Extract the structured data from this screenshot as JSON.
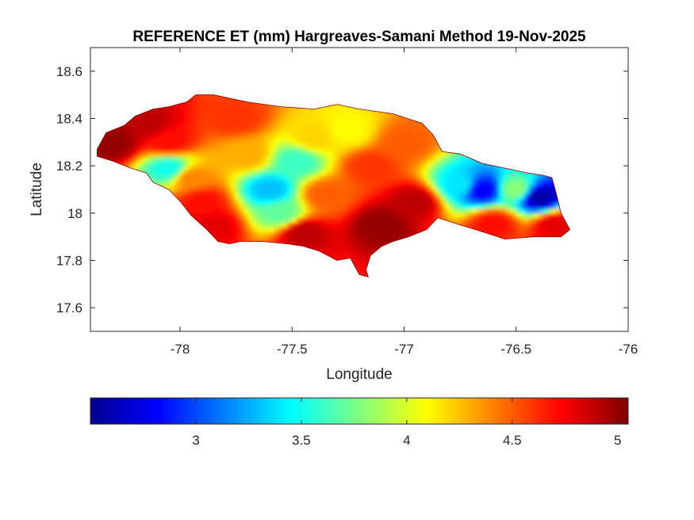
{
  "chart_data": {
    "type": "heatmap",
    "title": "REFERENCE ET (mm) Hargreaves-Samani Method  19-Nov-2025",
    "xlabel": "Longitude",
    "ylabel": "Latitude",
    "xlim": [
      -78.4,
      -76
    ],
    "ylim": [
      17.5,
      18.7
    ],
    "x_ticks": [
      -78,
      -77.5,
      -77,
      -76.5,
      -76
    ],
    "x_tick_labels": [
      "-78",
      "-77.5",
      "-77",
      "-76.5",
      "-76"
    ],
    "y_ticks": [
      17.6,
      17.8,
      18,
      18.2,
      18.4,
      18.6
    ],
    "y_tick_labels": [
      "17.6",
      "17.8",
      "18",
      "18.2",
      "18.4",
      "18.6"
    ],
    "grid": false,
    "colormap": "jet",
    "colorbar": {
      "location": "bottom",
      "range": [
        2.5,
        5.05
      ],
      "ticks": [
        3,
        3.5,
        4,
        4.5,
        5
      ],
      "tick_labels": [
        "3",
        "3.5",
        "4",
        "4.5",
        "5"
      ]
    },
    "region_outline": [
      [
        -78.37,
        18.27
      ],
      [
        -78.33,
        18.34
      ],
      [
        -78.25,
        18.37
      ],
      [
        -78.2,
        18.41
      ],
      [
        -78.12,
        18.44
      ],
      [
        -78.05,
        18.45
      ],
      [
        -77.97,
        18.47
      ],
      [
        -77.93,
        18.5
      ],
      [
        -77.85,
        18.5
      ],
      [
        -77.7,
        18.47
      ],
      [
        -77.55,
        18.45
      ],
      [
        -77.4,
        18.44
      ],
      [
        -77.3,
        18.46
      ],
      [
        -77.2,
        18.44
      ],
      [
        -77.05,
        18.42
      ],
      [
        -76.92,
        18.38
      ],
      [
        -76.87,
        18.33
      ],
      [
        -76.83,
        18.26
      ],
      [
        -76.75,
        18.25
      ],
      [
        -76.65,
        18.21
      ],
      [
        -76.55,
        18.19
      ],
      [
        -76.45,
        18.17
      ],
      [
        -76.38,
        18.16
      ],
      [
        -76.34,
        18.15
      ],
      [
        -76.32,
        18.08
      ],
      [
        -76.3,
        18.0
      ],
      [
        -76.26,
        17.93
      ],
      [
        -76.3,
        17.9
      ],
      [
        -76.42,
        17.9
      ],
      [
        -76.55,
        17.89
      ],
      [
        -76.68,
        17.93
      ],
      [
        -76.75,
        17.95
      ],
      [
        -76.85,
        17.98
      ],
      [
        -76.9,
        17.93
      ],
      [
        -76.98,
        17.9
      ],
      [
        -77.05,
        17.88
      ],
      [
        -77.1,
        17.86
      ],
      [
        -77.15,
        17.82
      ],
      [
        -77.17,
        17.76
      ],
      [
        -77.16,
        17.73
      ],
      [
        -77.2,
        17.74
      ],
      [
        -77.24,
        17.81
      ],
      [
        -77.3,
        17.8
      ],
      [
        -77.38,
        17.84
      ],
      [
        -77.45,
        17.86
      ],
      [
        -77.52,
        17.87
      ],
      [
        -77.63,
        17.88
      ],
      [
        -77.73,
        17.88
      ],
      [
        -77.78,
        17.87
      ],
      [
        -77.83,
        17.88
      ],
      [
        -77.88,
        17.93
      ],
      [
        -77.95,
        17.99
      ],
      [
        -78.0,
        18.05
      ],
      [
        -78.05,
        18.1
      ],
      [
        -78.12,
        18.13
      ],
      [
        -78.15,
        18.17
      ],
      [
        -78.22,
        18.19
      ],
      [
        -78.3,
        18.22
      ],
      [
        -78.37,
        18.24
      ]
    ],
    "values": [
      {
        "lon": -78.3,
        "lat": 18.3,
        "et": 5.0
      },
      {
        "lon": -78.15,
        "lat": 18.38,
        "et": 4.9
      },
      {
        "lon": -78.05,
        "lat": 18.3,
        "et": 4.7
      },
      {
        "lon": -78.05,
        "lat": 18.19,
        "et": 3.5
      },
      {
        "lon": -77.95,
        "lat": 18.15,
        "et": 4.4
      },
      {
        "lon": -77.9,
        "lat": 18.05,
        "et": 4.7
      },
      {
        "lon": -77.85,
        "lat": 17.95,
        "et": 4.8
      },
      {
        "lon": -77.75,
        "lat": 18.4,
        "et": 4.6
      },
      {
        "lon": -77.7,
        "lat": 18.25,
        "et": 4.3
      },
      {
        "lon": -77.6,
        "lat": 18.1,
        "et": 3.3
      },
      {
        "lon": -77.55,
        "lat": 18.0,
        "et": 3.7
      },
      {
        "lon": -77.48,
        "lat": 18.22,
        "et": 3.6
      },
      {
        "lon": -77.4,
        "lat": 18.32,
        "et": 4.2
      },
      {
        "lon": -77.45,
        "lat": 17.92,
        "et": 4.9
      },
      {
        "lon": -77.35,
        "lat": 18.08,
        "et": 4.5
      },
      {
        "lon": -77.25,
        "lat": 18.35,
        "et": 4.1
      },
      {
        "lon": -77.15,
        "lat": 18.2,
        "et": 4.6
      },
      {
        "lon": -77.1,
        "lat": 17.95,
        "et": 5.0
      },
      {
        "lon": -77.0,
        "lat": 18.3,
        "et": 4.5
      },
      {
        "lon": -76.95,
        "lat": 18.05,
        "et": 4.9
      },
      {
        "lon": -76.75,
        "lat": 18.12,
        "et": 3.4
      },
      {
        "lon": -76.65,
        "lat": 18.1,
        "et": 2.8
      },
      {
        "lon": -76.6,
        "lat": 17.96,
        "et": 4.7
      },
      {
        "lon": -76.5,
        "lat": 18.1,
        "et": 3.8
      },
      {
        "lon": -76.4,
        "lat": 18.07,
        "et": 2.6
      },
      {
        "lon": -76.32,
        "lat": 17.95,
        "et": 4.8
      }
    ]
  }
}
